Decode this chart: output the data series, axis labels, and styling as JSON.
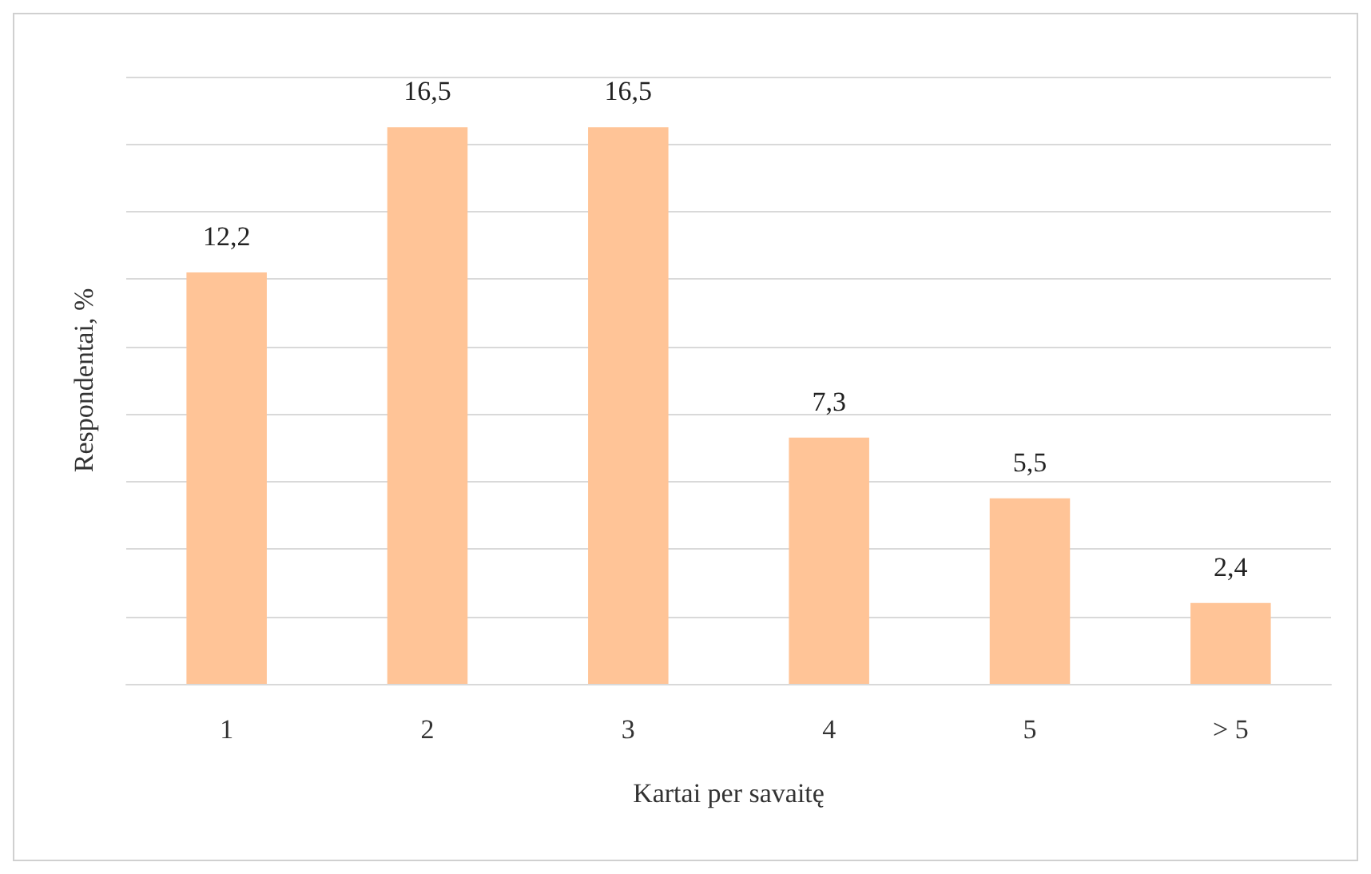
{
  "chart_data": {
    "type": "bar",
    "xlabel": "Kartai per savaitę",
    "ylabel": "Respondentai, %",
    "categories": [
      "1",
      "2",
      "3",
      "4",
      "5",
      "> 5"
    ],
    "values": [
      12.2,
      16.5,
      16.5,
      7.3,
      5.5,
      2.4
    ],
    "value_labels": [
      "12,2",
      "16,5",
      "16,5",
      "7,3",
      "5,5",
      "2,4"
    ],
    "color": "#ffc497",
    "grid": "y",
    "tick_labels": "x"
  }
}
